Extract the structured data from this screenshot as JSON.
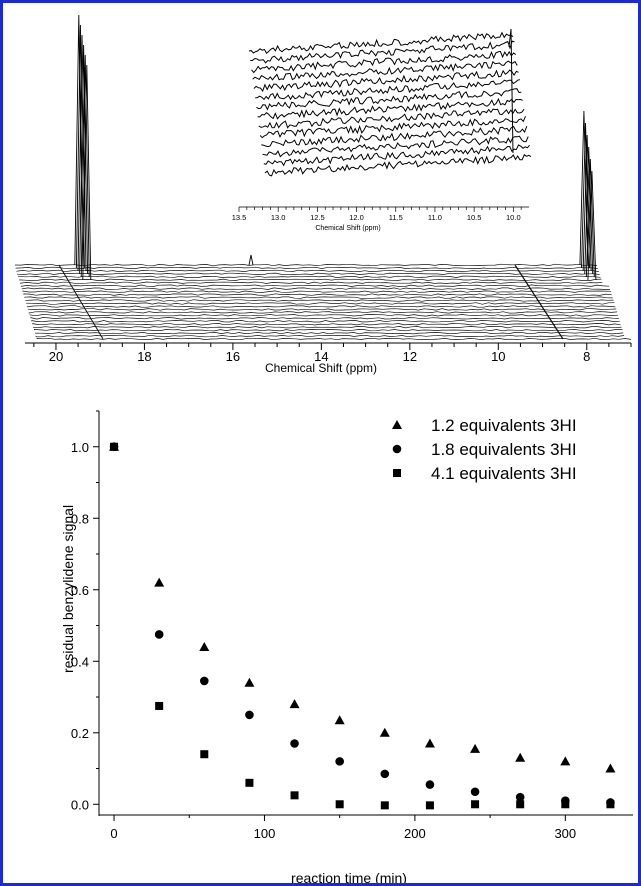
{
  "frame_color": "#1a2bd6",
  "chart_data": [
    {
      "type": "line",
      "description_of_traces": "stacked NMR spectra (waterfall)",
      "xlabel": "Chemical Shift (ppm)",
      "x_ticks": [
        "20",
        "18",
        "16",
        "14",
        "12",
        "10",
        "8"
      ],
      "xlim": [
        20.7,
        7.0
      ],
      "peaks_ppm": [
        19.8,
        8.2
      ],
      "inset": {
        "xlabel": "Chemical Shift (ppm)",
        "x_ticks": [
          "13.5",
          "13.0",
          "12.5",
          "12.0",
          "11.5",
          "11.0",
          "10.5",
          "10.0"
        ],
        "xlim": [
          13.5,
          9.8
        ]
      }
    },
    {
      "type": "scatter",
      "xlabel": "reaction time (min)",
      "ylabel": "residual benzylidene signal",
      "xlim": [
        -10,
        345
      ],
      "ylim": [
        -0.03,
        1.1
      ],
      "x_ticks": [
        "0",
        "100",
        "200",
        "300"
      ],
      "y_ticks": [
        "0.0",
        "0.2",
        "0.4",
        "0.6",
        "0.8",
        "1.0"
      ],
      "legend_position": "top-right",
      "series": [
        {
          "name": "1.2 equivalents 3HI",
          "marker": "triangle",
          "x": [
            0,
            30,
            60,
            90,
            120,
            150,
            180,
            210,
            240,
            270,
            300,
            330
          ],
          "y": [
            1.0,
            0.62,
            0.44,
            0.34,
            0.28,
            0.235,
            0.2,
            0.17,
            0.155,
            0.13,
            0.12,
            0.1
          ]
        },
        {
          "name": "1.8 equivalents 3HI",
          "marker": "circle",
          "x": [
            0,
            30,
            60,
            90,
            120,
            150,
            180,
            210,
            240,
            270,
            300,
            330
          ],
          "y": [
            1.0,
            0.475,
            0.345,
            0.25,
            0.17,
            0.12,
            0.085,
            0.055,
            0.035,
            0.02,
            0.01,
            0.005
          ]
        },
        {
          "name": "4.1 equivalents 3HI",
          "marker": "square",
          "x": [
            0,
            30,
            60,
            90,
            120,
            150,
            180,
            210,
            240,
            270,
            300,
            330
          ],
          "y": [
            1.0,
            0.275,
            0.14,
            0.06,
            0.025,
            0.0,
            -0.003,
            -0.003,
            0.0,
            0.0,
            0.0,
            0.0
          ]
        }
      ]
    }
  ]
}
